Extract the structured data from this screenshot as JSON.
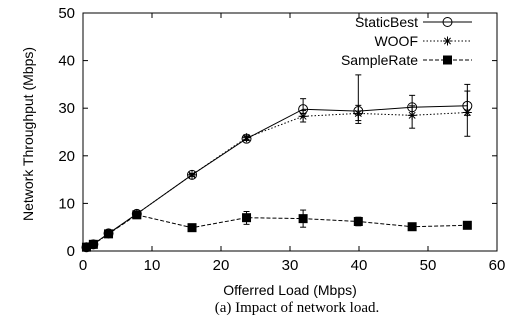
{
  "caption": "(a) Impact of network load.",
  "chart_data": {
    "type": "line",
    "title": "",
    "xlabel": "Offerred Load (Mbps)",
    "ylabel": "Network Throughput (Mbps)",
    "xlim": [
      0,
      60
    ],
    "ylim": [
      0,
      50
    ],
    "xticks": [
      0,
      10,
      20,
      30,
      40,
      50,
      60
    ],
    "yticks": [
      0,
      10,
      20,
      30,
      40,
      50
    ],
    "grid": false,
    "legend_position": "top-right",
    "series": [
      {
        "name": "StaticBest",
        "marker": "open-circle",
        "line": "solid",
        "x": [
          0.5,
          1.5,
          3.7,
          7.8,
          15.8,
          23.7,
          31.9,
          39.9,
          47.7,
          55.7
        ],
        "y": [
          0.8,
          1.4,
          3.7,
          7.8,
          16.0,
          23.6,
          29.8,
          29.4,
          30.2,
          30.5
        ],
        "err_low": [
          0.8,
          1.4,
          3.7,
          7.5,
          15.7,
          23.2,
          28.3,
          27.4,
          28.5,
          28.5
        ],
        "err_high": [
          0.8,
          1.4,
          3.7,
          8.0,
          16.2,
          24.0,
          32.0,
          37.0,
          32.7,
          35.0
        ]
      },
      {
        "name": "WOOF",
        "marker": "star",
        "line": "dotted",
        "x": [
          0.5,
          1.5,
          3.7,
          7.8,
          15.8,
          23.7,
          31.9,
          39.9,
          47.7,
          55.7
        ],
        "y": [
          0.8,
          1.4,
          3.6,
          7.8,
          16.0,
          23.8,
          28.3,
          28.9,
          28.5,
          29.1
        ],
        "err_low": [
          0.8,
          1.4,
          3.6,
          7.5,
          15.7,
          23.4,
          27.1,
          26.8,
          25.8,
          24.1
        ],
        "err_high": [
          0.8,
          1.4,
          3.6,
          8.1,
          16.3,
          24.2,
          29.5,
          30.6,
          30.5,
          33.6
        ]
      },
      {
        "name": "SampleRate",
        "marker": "filled-square",
        "line": "dashed",
        "x": [
          0.5,
          1.5,
          3.7,
          7.8,
          15.8,
          23.7,
          31.9,
          39.9,
          47.7,
          55.7
        ],
        "y": [
          0.8,
          1.4,
          3.6,
          7.6,
          4.9,
          7.0,
          6.8,
          6.2,
          5.1,
          5.4
        ],
        "err_low": [
          0.8,
          1.4,
          3.6,
          7.3,
          4.6,
          5.6,
          5.0,
          5.3,
          5.1,
          5.4
        ],
        "err_high": [
          0.8,
          1.4,
          3.6,
          7.9,
          5.2,
          8.3,
          8.6,
          7.1,
          5.1,
          5.4
        ]
      }
    ]
  }
}
